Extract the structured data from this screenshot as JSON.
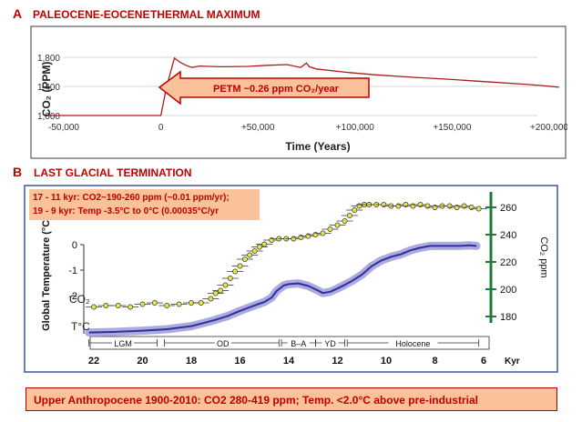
{
  "panel_a": {
    "letter": "A",
    "title_part1": "PALEOCENE-EOCENE",
    "title_part2": "THERMAL MAXIMUM",
    "annotation": "PETM ~0.26 ppm CO₂/year"
  },
  "panel_b": {
    "letter": "B",
    "title": "LAST GLACIAL TERMINATION",
    "note_line1": "17 - 11 kyr: CO2~190-260 ppm (~0.01 ppm/yr);",
    "note_line2": "19 - 9 kyr: Temp -3.5°C to 0°C (0.00035°C/yr",
    "co2_label": "CO₂",
    "temp_label": "T°C"
  },
  "footer": {
    "text": "Upper Anthropocene  1900-2010: CO2 280-419 ppm; Temp. <2.0°C above pre-industrial"
  },
  "colors": {
    "red": "#c00000",
    "petm_line": "#b01a1a",
    "box_fill": "#f9c29a",
    "blue": "#2f2f9a",
    "green": "#1e7a35",
    "yellow": "#e6e84a"
  },
  "chart_data": [
    {
      "type": "line",
      "title": "PALEOCENE-EOCENE THERMAL MAXIMUM",
      "xlabel": "Time (Years)",
      "ylabel": "CO₂ (PPM)",
      "xlim": [
        -50000,
        200000
      ],
      "ylim": [
        1000,
        1800
      ],
      "x_ticks": [
        -50000,
        0,
        50000,
        100000,
        150000,
        200000
      ],
      "x_tick_labels": [
        "-50,000",
        "0",
        "+50,000",
        "+100,000",
        "+150,000",
        "+200,000"
      ],
      "y_ticks": [
        1000,
        1400,
        1800
      ],
      "y_tick_labels": [
        "1,000",
        "1,400",
        "1,800"
      ],
      "series": [
        {
          "name": "CO2",
          "x": [
            -58000,
            0,
            3000,
            7000,
            10000,
            13000,
            16000,
            20000,
            30000,
            45000,
            55000,
            65000,
            72000,
            75000,
            76500,
            80000,
            95000,
            110000,
            130000,
            150000,
            170000,
            190000,
            205000
          ],
          "y": [
            1000,
            1000,
            1400,
            1790,
            1730,
            1690,
            1660,
            1680,
            1670,
            1675,
            1690,
            1700,
            1660,
            1720,
            1670,
            1640,
            1595,
            1560,
            1525,
            1495,
            1460,
            1425,
            1390
          ]
        }
      ]
    },
    {
      "type": "line",
      "title": "LAST GLACIAL TERMINATION",
      "xlabel": "Kyr",
      "ylabel": "Global Temperature (°C)",
      "ylabel_right": "CO₂ ppm",
      "xlim": [
        23,
        6
      ],
      "x_ticks": [
        22,
        20,
        18,
        16,
        14,
        12,
        10,
        8,
        6
      ],
      "x_tick_labels": [
        "22",
        "20",
        "18",
        "16",
        "14",
        "12",
        "10",
        "8",
        "6"
      ],
      "y_left_lim": [
        -3.5,
        0
      ],
      "y_left_ticks": [
        0,
        -1,
        -2
      ],
      "y_left_tick_labels": [
        "0",
        "-1",
        "-2"
      ],
      "y_right_lim": [
        180,
        260
      ],
      "y_right_ticks": [
        180,
        200,
        220,
        240,
        260
      ],
      "y_right_tick_labels": [
        "180",
        "200",
        "220",
        "240",
        "260"
      ],
      "periods": [
        "LGM",
        "OD",
        "B–A",
        "YD",
        "Holocene"
      ],
      "series": [
        {
          "name": "Temperature (°C)",
          "axis": "left",
          "x": [
            22.2,
            21,
            20,
            19,
            18,
            17.5,
            17,
            16.5,
            16,
            15.5,
            15,
            14.7,
            14.5,
            14.2,
            14,
            13.6,
            13.2,
            12.8,
            12.6,
            12.3,
            12,
            11.7,
            11.4,
            11,
            10.6,
            10.2,
            9.8,
            9.4,
            9,
            8.6,
            8.2,
            8,
            7.5,
            7,
            6.6,
            6.3
          ],
          "y": [
            -3.45,
            -3.42,
            -3.38,
            -3.32,
            -3.2,
            -3.08,
            -2.95,
            -2.8,
            -2.6,
            -2.42,
            -2.25,
            -2.08,
            -1.82,
            -1.6,
            -1.55,
            -1.52,
            -1.62,
            -1.8,
            -1.9,
            -1.85,
            -1.72,
            -1.58,
            -1.42,
            -1.18,
            -0.85,
            -0.62,
            -0.48,
            -0.38,
            -0.22,
            -0.12,
            -0.05,
            -0.05,
            -0.05,
            -0.05,
            -0.03,
            -0.05
          ]
        },
        {
          "name": "CO2 (ppm)",
          "axis": "right",
          "x": [
            22,
            21.5,
            21,
            20.5,
            20,
            19.5,
            19,
            18.5,
            18,
            17.6,
            17.2,
            17,
            16.8,
            16.6,
            16.4,
            16.2,
            16,
            15.8,
            15.6,
            15.4,
            15.2,
            15,
            14.7,
            14.4,
            14.1,
            13.8,
            13.5,
            13.2,
            12.9,
            12.6,
            12.3,
            12,
            11.7,
            11.5,
            11.3,
            11.1,
            10.9,
            10.7,
            10.4,
            10.1,
            9.8,
            9.5,
            9.2,
            8.9,
            8.6,
            8.3,
            8,
            7.7,
            7.4,
            7.1,
            6.8,
            6.5,
            6.2
          ],
          "y": [
            187,
            188,
            188,
            187,
            189,
            190,
            188,
            189,
            190,
            190,
            193,
            197,
            199,
            203,
            208,
            213,
            217,
            222,
            225,
            228,
            231,
            233,
            236,
            237,
            237,
            237,
            238,
            239,
            240,
            241,
            244,
            247,
            250,
            254,
            258,
            261,
            262,
            262,
            262,
            262,
            261,
            261,
            262,
            261,
            262,
            261,
            260,
            261,
            261,
            260,
            261,
            260,
            259
          ]
        }
      ]
    }
  ]
}
